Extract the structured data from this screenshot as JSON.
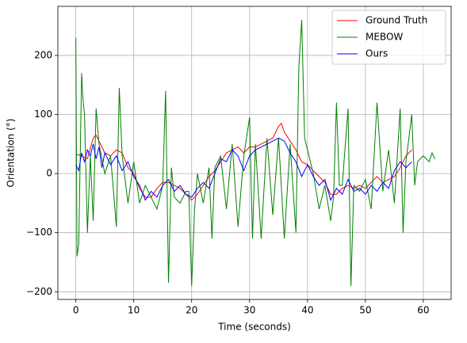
{
  "chart_data": {
    "type": "line",
    "xlabel": "Time (seconds)",
    "ylabel": "Orientation (°)",
    "xlim": [
      -3.1,
      64.8
    ],
    "ylim": [
      -213,
      283
    ],
    "xticks": [
      0,
      10,
      20,
      30,
      40,
      50,
      60
    ],
    "yticks": [
      {
        "value": -200,
        "label": "−200"
      },
      {
        "value": -100,
        "label": "−100"
      },
      0,
      100,
      200
    ],
    "grid": true,
    "legend": "upper right",
    "series": [
      {
        "name": "Ground Truth",
        "color": "#ff0000",
        "x": [
          0,
          1,
          2,
          3,
          3.5,
          4,
          5,
          6,
          7,
          8,
          9,
          10,
          11,
          12,
          13,
          14,
          15,
          16,
          17,
          18,
          19,
          20,
          21,
          22,
          23,
          24,
          25,
          26,
          27,
          28,
          29,
          30,
          31,
          32,
          33,
          34,
          35,
          35.5,
          36,
          37,
          38,
          39,
          40,
          41,
          42,
          43,
          44,
          45,
          46,
          47,
          48,
          49,
          50,
          51,
          52,
          53,
          54,
          55,
          56,
          57,
          58
        ],
        "values": [
          33,
          30,
          25,
          60,
          65,
          55,
          35,
          30,
          40,
          35,
          10,
          0,
          -25,
          -40,
          -40,
          -25,
          -15,
          -15,
          -20,
          -25,
          -35,
          -45,
          -35,
          -20,
          -5,
          5,
          20,
          35,
          40,
          45,
          35,
          45,
          45,
          50,
          55,
          60,
          80,
          85,
          70,
          55,
          40,
          20,
          15,
          5,
          -5,
          -15,
          -35,
          -35,
          -25,
          -20,
          -25,
          -20,
          -25,
          -15,
          -5,
          -15,
          -10,
          -5,
          10,
          30,
          40
        ]
      },
      {
        "name": "MEBOW",
        "color": "#008000",
        "x": [
          0,
          0.2,
          0.5,
          1,
          1.2,
          1.5,
          2,
          2.5,
          3,
          3.5,
          4,
          5,
          6,
          7,
          7.5,
          8,
          9,
          10,
          11,
          12,
          13,
          14,
          15,
          15.5,
          16,
          16.5,
          17,
          18,
          19,
          19.5,
          20,
          20.5,
          21,
          22,
          23,
          23.5,
          24,
          25,
          26,
          27,
          28,
          29,
          30,
          30.5,
          31,
          32,
          33,
          34,
          35,
          36,
          37,
          38,
          38.5,
          39,
          39.5,
          40,
          41,
          42,
          43,
          44,
          44.5,
          45,
          45.5,
          46,
          47,
          47.5,
          48,
          49,
          50,
          51,
          52,
          53,
          54,
          55,
          56,
          56.5,
          57,
          58,
          58.5,
          59,
          60,
          61,
          61.5,
          62
        ],
        "values": [
          230,
          -140,
          -120,
          170,
          130,
          100,
          -100,
          30,
          -80,
          110,
          50,
          0,
          30,
          -90,
          145,
          30,
          -50,
          20,
          -50,
          -20,
          -40,
          -60,
          -20,
          140,
          -185,
          10,
          -40,
          -50,
          -30,
          -30,
          -190,
          -60,
          0,
          -50,
          10,
          -110,
          10,
          30,
          -60,
          50,
          -90,
          30,
          95,
          -110,
          50,
          -110,
          60,
          -70,
          60,
          -110,
          50,
          -100,
          180,
          260,
          60,
          40,
          0,
          -60,
          -20,
          -80,
          -40,
          120,
          -20,
          -20,
          110,
          -190,
          -20,
          -30,
          -10,
          -60,
          120,
          -30,
          40,
          -50,
          110,
          -100,
          20,
          100,
          -20,
          20,
          30,
          20,
          35,
          25
        ]
      },
      {
        "name": "Ours",
        "color": "#0000ff",
        "x": [
          0,
          0.5,
          1,
          1.5,
          2,
          2.5,
          3,
          3.5,
          4,
          4.5,
          5,
          6,
          7,
          8,
          9,
          10,
          11,
          12,
          13,
          14,
          15,
          16,
          17,
          18,
          19,
          20,
          21,
          22,
          23,
          24,
          25,
          26,
          27,
          28,
          29,
          30,
          31,
          32,
          33,
          34,
          35,
          36,
          37,
          38,
          39,
          40,
          41,
          42,
          43,
          44,
          45,
          46,
          47,
          48,
          49,
          50,
          51,
          52,
          53,
          54,
          55,
          56,
          57,
          58
        ],
        "values": [
          15,
          5,
          35,
          20,
          40,
          30,
          50,
          25,
          45,
          10,
          35,
          15,
          30,
          5,
          20,
          -5,
          -20,
          -45,
          -30,
          -40,
          -20,
          -10,
          -30,
          -20,
          -35,
          -40,
          -25,
          -15,
          -25,
          0,
          25,
          20,
          40,
          30,
          5,
          30,
          40,
          45,
          50,
          55,
          60,
          55,
          35,
          20,
          -5,
          15,
          -5,
          -20,
          -10,
          -45,
          -25,
          -35,
          -10,
          -30,
          -25,
          -35,
          -20,
          -30,
          -15,
          -25,
          5,
          20,
          10,
          20
        ]
      }
    ]
  }
}
